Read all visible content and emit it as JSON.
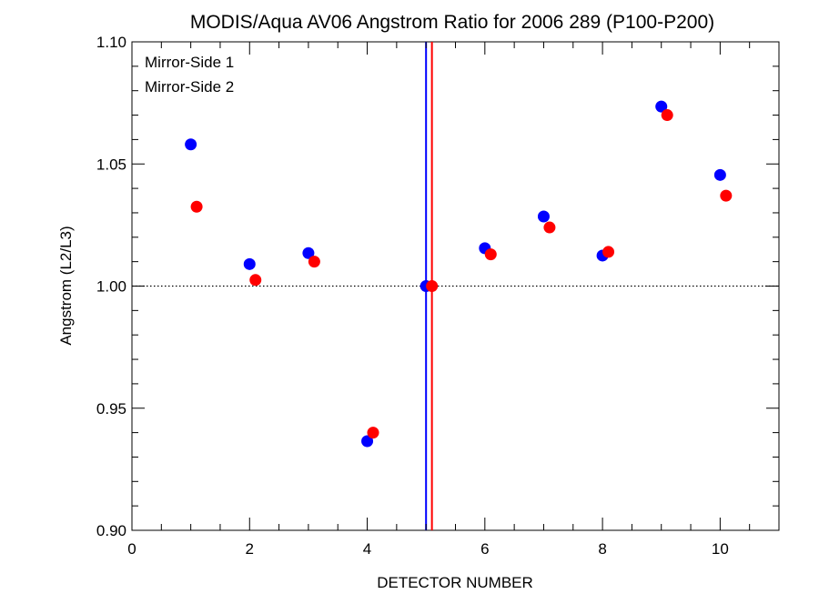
{
  "chart_data": {
    "type": "scatter",
    "title": "MODIS/Aqua AV06 Angstrom Ratio for 2006 289 (P100-P200)",
    "xlabel": "DETECTOR NUMBER",
    "ylabel": "Angstrom (L2/L3)",
    "xlim": [
      0,
      11
    ],
    "ylim": [
      0.9,
      1.1
    ],
    "x_ticks": [
      0,
      2,
      4,
      6,
      8,
      10
    ],
    "x_tick_labels": [
      "0",
      "2",
      "4",
      "6",
      "8",
      "10"
    ],
    "y_ticks": [
      0.9,
      0.95,
      1.0,
      1.05,
      1.1
    ],
    "y_tick_labels": [
      "0.90",
      "0.95",
      "1.00",
      "1.05",
      "1.10"
    ],
    "reference_line_y": 1.0,
    "reference_line_style": "dotted",
    "vertical_lines": [
      {
        "x": 5.0,
        "color": "#0000ff"
      },
      {
        "x": 5.1,
        "color": "#ff0000"
      }
    ],
    "legend_position": "top-left",
    "series": [
      {
        "name": "Mirror-Side 1",
        "color": "#0000ff",
        "x": [
          1,
          2,
          3,
          4,
          5,
          6,
          7,
          8,
          9,
          10
        ],
        "y": [
          1.058,
          1.009,
          1.0135,
          0.9365,
          1.0,
          1.0155,
          1.0285,
          1.0125,
          1.0735,
          1.0455
        ]
      },
      {
        "name": "Mirror-Side 2",
        "color": "#ff0000",
        "x": [
          1.1,
          2.1,
          3.1,
          4.1,
          5.1,
          6.1,
          7.1,
          8.1,
          9.1,
          10.1
        ],
        "y": [
          1.0325,
          1.0025,
          1.01,
          0.94,
          1.0,
          1.013,
          1.024,
          1.014,
          1.07,
          1.037
        ]
      }
    ]
  }
}
